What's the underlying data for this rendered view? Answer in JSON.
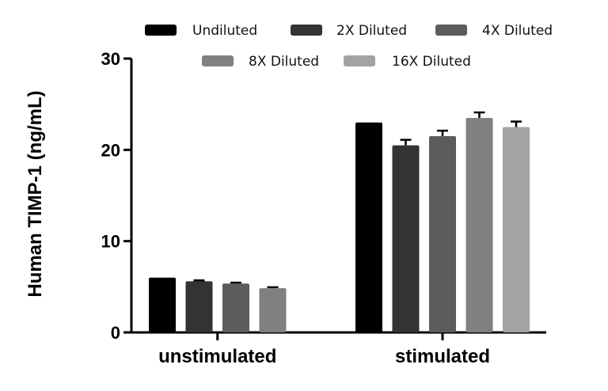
{
  "chart_data": {
    "type": "bar",
    "title": "",
    "xlabel": "",
    "ylabel": "Human TIMP-1 (ng/mL)",
    "ylim": [
      0,
      30
    ],
    "yticks": [
      0,
      10,
      20,
      30
    ],
    "categories": [
      "unstimulated",
      "stimulated"
    ],
    "legend_position": "top",
    "grid": false,
    "series": [
      {
        "name": "Undiluted",
        "color": "#000000",
        "values": [
          6.0,
          23.0
        ],
        "errors": [
          0.0,
          0.0
        ]
      },
      {
        "name": "2X Diluted",
        "color": "#333333",
        "values": [
          5.6,
          20.5
        ],
        "errors": [
          0.1,
          0.6
        ]
      },
      {
        "name": "4X Diluted",
        "color": "#5c5c5c",
        "values": [
          5.35,
          21.5
        ],
        "errors": [
          0.1,
          0.6
        ]
      },
      {
        "name": "8X Diluted",
        "color": "#808080",
        "values": [
          4.85,
          23.5
        ],
        "errors": [
          0.1,
          0.6
        ]
      },
      {
        "name": "16X Diluted",
        "color": "#a3a3a3",
        "values": [
          null,
          22.5
        ],
        "errors": [
          null,
          0.6
        ]
      }
    ]
  }
}
